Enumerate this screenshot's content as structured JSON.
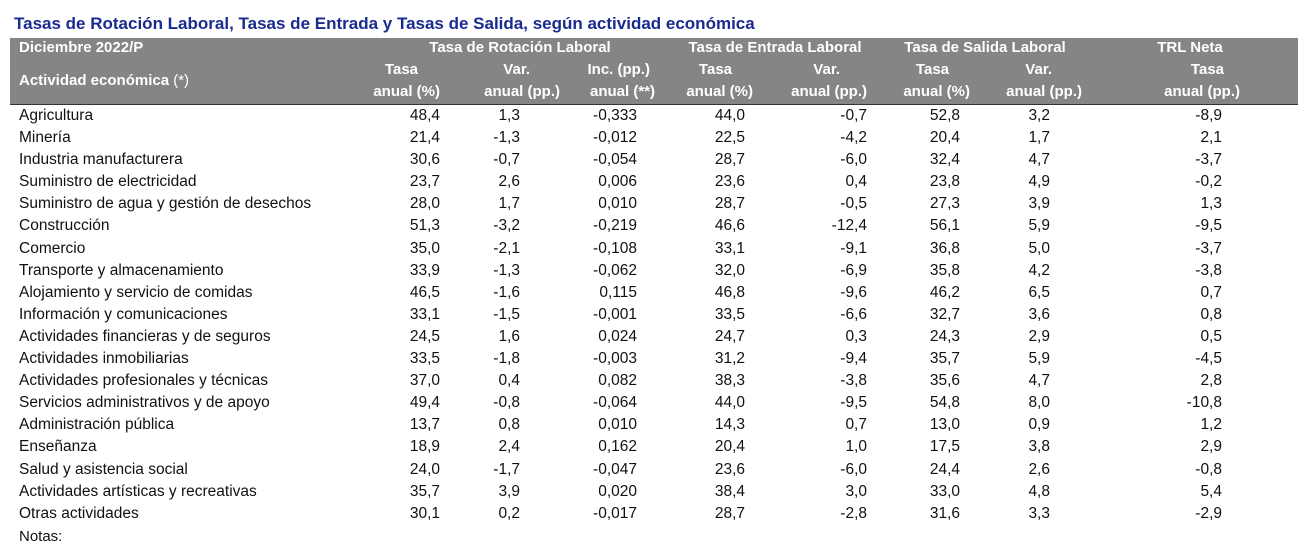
{
  "title": "Tasas de Rotación Laboral, Tasas de Entrada y Tasas de Salida, según actividad económica",
  "header": {
    "period": "Diciembre 2022/P",
    "row_label": "Actividad económica",
    "row_label_mark": "(*)",
    "groups": {
      "rotacion": "Tasa de Rotación Laboral",
      "entrada": "Tasa de Entrada Laboral",
      "salida": "Tasa de Salida Laboral",
      "neta": "TRL Neta"
    },
    "sub": {
      "tasa": "Tasa",
      "var": "Var.",
      "inc": "Inc. (pp.)",
      "anual_pct": "anual (%)",
      "anual_pp": "anual (pp.)",
      "anual_inc": "anual (**)"
    }
  },
  "rows": [
    {
      "name": "Agricultura",
      "values": [
        "48,4",
        "1,3",
        "-0,333",
        "44,0",
        "-0,7",
        "52,8",
        "3,2",
        "-8,9"
      ]
    },
    {
      "name": "Minería",
      "values": [
        "21,4",
        "-1,3",
        "-0,012",
        "22,5",
        "-4,2",
        "20,4",
        "1,7",
        "2,1"
      ]
    },
    {
      "name": "Industria manufacturera",
      "values": [
        "30,6",
        "-0,7",
        "-0,054",
        "28,7",
        "-6,0",
        "32,4",
        "4,7",
        "-3,7"
      ]
    },
    {
      "name": "Suministro de electricidad",
      "values": [
        "23,7",
        "2,6",
        "0,006",
        "23,6",
        "0,4",
        "23,8",
        "4,9",
        "-0,2"
      ]
    },
    {
      "name": "Suministro de agua y gestión de desechos",
      "values": [
        "28,0",
        "1,7",
        "0,010",
        "28,7",
        "-0,5",
        "27,3",
        "3,9",
        "1,3"
      ]
    },
    {
      "name": "Construcción",
      "values": [
        "51,3",
        "-3,2",
        "-0,219",
        "46,6",
        "-12,4",
        "56,1",
        "5,9",
        "-9,5"
      ]
    },
    {
      "name": "Comercio",
      "values": [
        "35,0",
        "-2,1",
        "-0,108",
        "33,1",
        "-9,1",
        "36,8",
        "5,0",
        "-3,7"
      ]
    },
    {
      "name": "Transporte y almacenamiento",
      "values": [
        "33,9",
        "-1,3",
        "-0,062",
        "32,0",
        "-6,9",
        "35,8",
        "4,2",
        "-3,8"
      ]
    },
    {
      "name": "Alojamiento y servicio de comidas",
      "values": [
        "46,5",
        "-1,6",
        "0,115",
        "46,8",
        "-9,6",
        "46,2",
        "6,5",
        "0,7"
      ]
    },
    {
      "name": "Información y comunicaciones",
      "values": [
        "33,1",
        "-1,5",
        "-0,001",
        "33,5",
        "-6,6",
        "32,7",
        "3,6",
        "0,8"
      ]
    },
    {
      "name": "Actividades financieras y de seguros",
      "values": [
        "24,5",
        "1,6",
        "0,024",
        "24,7",
        "0,3",
        "24,3",
        "2,9",
        "0,5"
      ]
    },
    {
      "name": "Actividades inmobiliarias",
      "values": [
        "33,5",
        "-1,8",
        "-0,003",
        "31,2",
        "-9,4",
        "35,7",
        "5,9",
        "-4,5"
      ]
    },
    {
      "name": "Actividades profesionales y técnicas",
      "values": [
        "37,0",
        "0,4",
        "0,082",
        "38,3",
        "-3,8",
        "35,6",
        "4,7",
        "2,8"
      ]
    },
    {
      "name": "Servicios administrativos y de apoyo",
      "values": [
        "49,4",
        "-0,8",
        "-0,064",
        "44,0",
        "-9,5",
        "54,8",
        "8,0",
        "-10,8"
      ]
    },
    {
      "name": "Administración pública",
      "values": [
        "13,7",
        "0,8",
        "0,010",
        "14,3",
        "0,7",
        "13,0",
        "0,9",
        "1,2"
      ]
    },
    {
      "name": "Enseñanza",
      "values": [
        "18,9",
        "2,4",
        "0,162",
        "20,4",
        "1,0",
        "17,5",
        "3,8",
        "2,9"
      ]
    },
    {
      "name": "Salud y asistencia social",
      "values": [
        "24,0",
        "-1,7",
        "-0,047",
        "23,6",
        "-6,0",
        "24,4",
        "2,6",
        "-0,8"
      ]
    },
    {
      "name": "Actividades artísticas y recreativas",
      "values": [
        "35,7",
        "3,9",
        "0,020",
        "38,4",
        "3,0",
        "33,0",
        "4,8",
        "5,4"
      ]
    },
    {
      "name": "Otras actividades",
      "values": [
        "30,1",
        "0,2",
        "-0,017",
        "28,7",
        "-2,8",
        "31,6",
        "3,3",
        "-2,9"
      ]
    }
  ],
  "notes_label": "Notas:"
}
